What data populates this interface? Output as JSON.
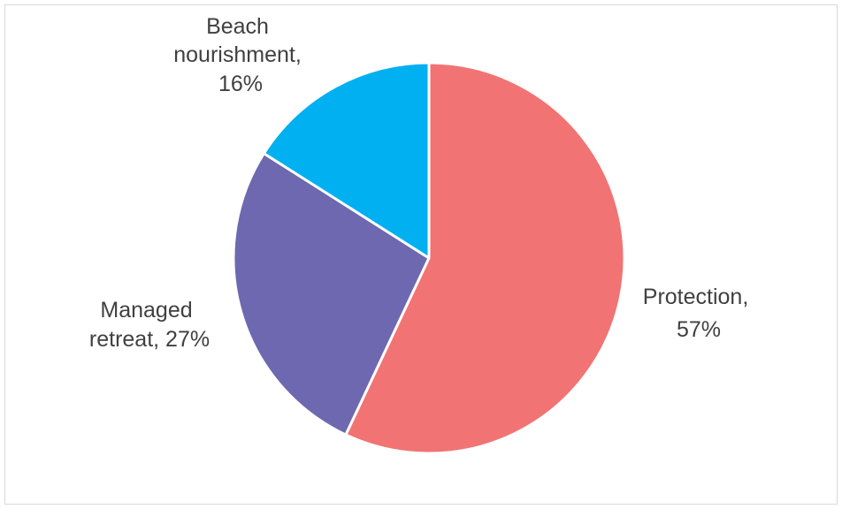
{
  "chart_data": {
    "type": "pie",
    "title": "",
    "slices": [
      {
        "label_lines": [
          "Protection,",
          "57%"
        ],
        "name": "Protection",
        "value": 57,
        "color": "#F27373"
      },
      {
        "label_lines": [
          "Managed",
          "retreat, 27%"
        ],
        "name": "Managed retreat",
        "value": 27,
        "color": "#6E68B0"
      },
      {
        "label_lines": [
          "Beach",
          "nourishment,",
          "16%"
        ],
        "name": "Beach nourishment",
        "value": 16,
        "color": "#00B0F0"
      }
    ],
    "start_angle_deg": 0,
    "direction": "clockwise",
    "legend": "none",
    "slice_border_color": "#ffffff"
  }
}
